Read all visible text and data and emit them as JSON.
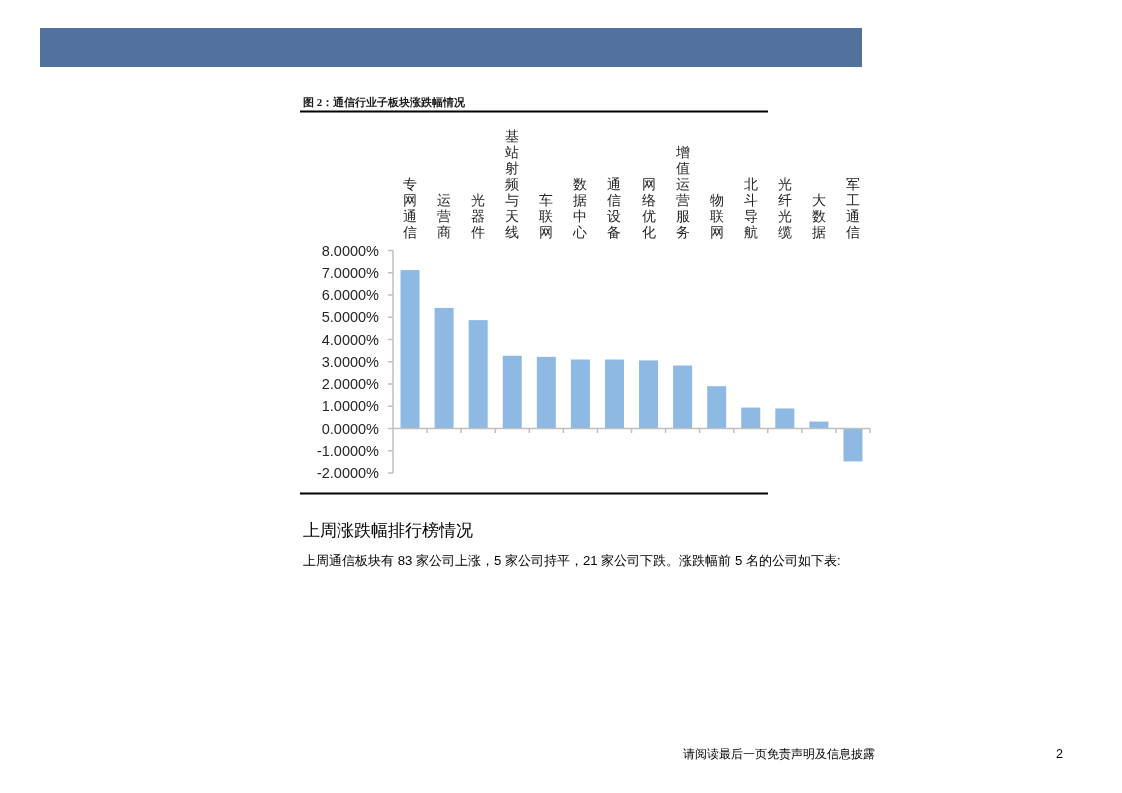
{
  "chart_data": {
    "type": "bar",
    "title": "图 2：通信行业子板块涨跌幅情况",
    "categories": [
      "专网通信",
      "运营商",
      "光器件",
      "基站射频与天线",
      "车联网",
      "数据中心",
      "通信设备",
      "网络优化",
      "增值运营服务",
      "物联网",
      "北斗导航",
      "光纤光缆",
      "大数据",
      "军工通信"
    ],
    "values": [
      7.12,
      5.42,
      4.87,
      3.27,
      3.22,
      3.1,
      3.1,
      3.06,
      2.83,
      1.9,
      0.94,
      0.9,
      0.31,
      -1.48
    ],
    "color": "#8db9e2",
    "ylim": [
      -2,
      8
    ],
    "yticks": [
      {
        "value": -2,
        "label": "-2.0000%"
      },
      {
        "value": -1,
        "label": "-1.0000%"
      },
      {
        "value": 0,
        "label": "0.0000%"
      },
      {
        "value": 1,
        "label": "1.0000%"
      },
      {
        "value": 2,
        "label": "2.0000%"
      },
      {
        "value": 3,
        "label": "3.0000%"
      },
      {
        "value": 4,
        "label": "4.0000%"
      },
      {
        "value": 5,
        "label": "5.0000%"
      },
      {
        "value": 6,
        "label": "6.0000%"
      },
      {
        "value": 7,
        "label": "7.0000%"
      },
      {
        "value": 8,
        "label": "8.0000%"
      }
    ],
    "annotations": [
      "上周涨跌幅排行榜情况",
      "上周通信板块有 83 家公司上涨，5 家公司持平，21 家公司下跌。涨跌幅前 5 名的公司如下表:",
      "请阅读最后一页免责声明及信息披露",
      "2"
    ]
  }
}
